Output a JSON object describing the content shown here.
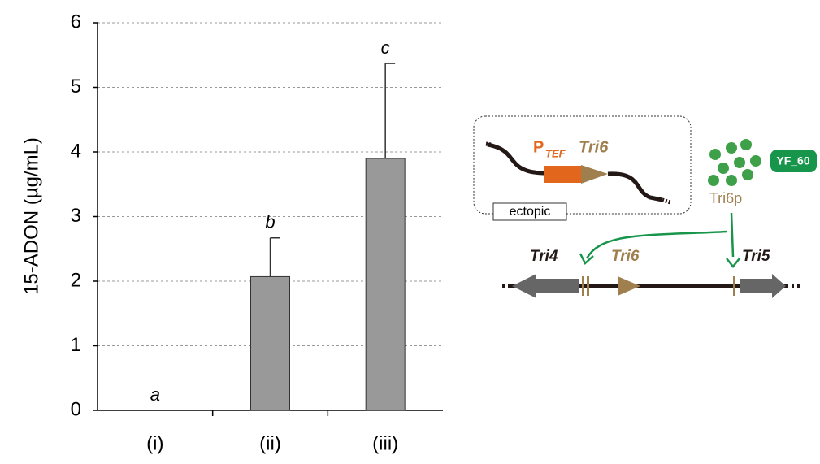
{
  "chart_data": {
    "type": "bar",
    "y_label": "15-ADON (µg/mL)",
    "categories": [
      "(i)",
      "(ii)",
      "(iii)"
    ],
    "values": [
      0,
      2.07,
      3.9
    ],
    "errors": [
      null,
      0.6,
      1.47
    ],
    "significance": [
      "a",
      "b",
      "c"
    ],
    "color": "#999999",
    "ylim": [
      0,
      6
    ],
    "yticks": [
      0,
      1,
      2,
      3,
      4,
      5,
      6
    ],
    "grid": true
  },
  "diagram": {
    "promoter": "P",
    "promoter_sub": "TEF",
    "ectopic_gene": "Tri6",
    "ectopic_label": "ectopic",
    "protein": "Tri6p",
    "badge": "YF_60",
    "genes": [
      "Tri4",
      "Tri6",
      "Tri5"
    ]
  }
}
